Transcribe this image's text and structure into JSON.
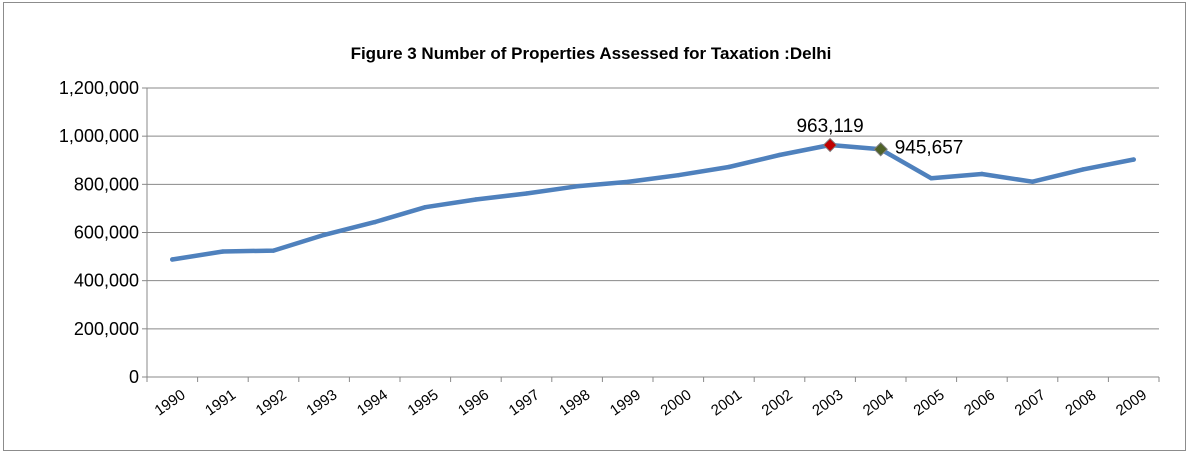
{
  "chart_data": {
    "type": "line",
    "title": "Figure 3  Number of Properties Assessed for Taxation :Delhi",
    "xlabel": "",
    "ylabel": "",
    "ylim": [
      0,
      1200000
    ],
    "y_ticks": [
      0,
      200000,
      400000,
      600000,
      800000,
      1000000,
      1200000
    ],
    "y_tick_labels": [
      "0",
      "200,000",
      "400,000",
      "600,000",
      "800,000",
      "1,000,000",
      "1,200,000"
    ],
    "grid": true,
    "legend": "none",
    "categories": [
      "1990",
      "1991",
      "1992",
      "1993",
      "1994",
      "1995",
      "1996",
      "1997",
      "1998",
      "1999",
      "2000",
      "2001",
      "2002",
      "2003",
      "2004",
      "2005",
      "2006",
      "2007",
      "2008",
      "2009"
    ],
    "series": [
      {
        "values": [
          488000,
          521000,
          525000,
          590000,
          643000,
          705000,
          737000,
          762000,
          792000,
          810000,
          838000,
          872000,
          922000,
          963119,
          945657,
          825000,
          843000,
          811000,
          862000,
          903000
        ],
        "color": "#4f81bd"
      }
    ],
    "highlighted_points": [
      {
        "category": "2003",
        "value": 963119,
        "label": "963,119",
        "marker_color": "#c00000"
      },
      {
        "category": "2004",
        "value": 945657,
        "label": "945,657",
        "marker_color": "#4f6228"
      }
    ]
  }
}
